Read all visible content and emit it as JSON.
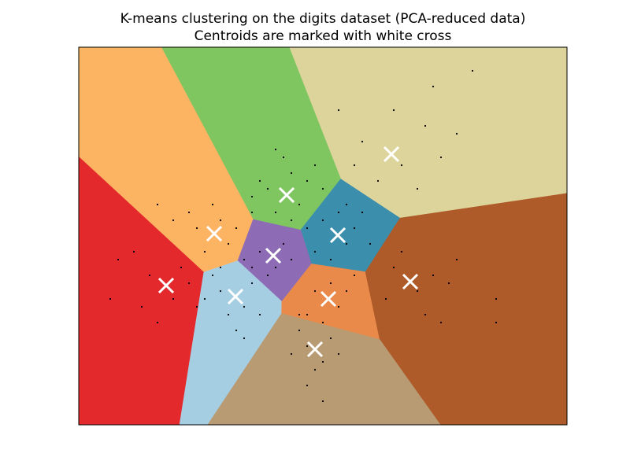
{
  "chart_data": {
    "type": "scatter",
    "title": "K-means clustering on the digits dataset (PCA-reduced data)",
    "subtitle": "Centroids are marked with white cross",
    "xlim": [
      0,
      62
    ],
    "ylim": [
      0,
      48
    ],
    "point_color": "#000000",
    "centroid_color": "#ffffff",
    "centroids": {
      "x": [
        39.7,
        26.4,
        17.2,
        32.9,
        24.7,
        11.1,
        19.9,
        31.7,
        42.1,
        30.0
      ],
      "y": [
        34.4,
        29.2,
        24.3,
        24.1,
        21.5,
        17.7,
        16.3,
        16.0,
        18.2,
        9.6
      ],
      "colors": [
        "#ddd49b",
        "#7fc661",
        "#fdb462",
        "#3b8eac",
        "#8e6bb5",
        "#e4292c",
        "#a6cee3",
        "#ea8a4a",
        "#ae5a29",
        "#b89b73"
      ]
    },
    "points": {
      "x": [
        36,
        41,
        44,
        38,
        45,
        40,
        35,
        43,
        48,
        50,
        33,
        46,
        24,
        27,
        28,
        25,
        29,
        22,
        26,
        30,
        23,
        27,
        31,
        25,
        15,
        18,
        16,
        19,
        14,
        20,
        17,
        21,
        12,
        18,
        22,
        10,
        31,
        34,
        33,
        35,
        30,
        36,
        32,
        29,
        37,
        34,
        23,
        25,
        26,
        24,
        22,
        27,
        9,
        12,
        14,
        8,
        5,
        13,
        10,
        4,
        15,
        7,
        18,
        21,
        19,
        22,
        17,
        20,
        23,
        16,
        21,
        30,
        33,
        32,
        29,
        34,
        31,
        35,
        40,
        43,
        45,
        39,
        44,
        47,
        41,
        48,
        46,
        53,
        53,
        29,
        31,
        28,
        32,
        30,
        27,
        33,
        29,
        31,
        28
      ],
      "y": [
        36,
        33,
        38,
        31,
        43,
        40,
        33,
        30,
        37,
        45,
        40,
        34,
        30,
        32,
        28,
        27,
        31,
        29,
        34,
        33,
        31,
        26,
        30,
        35,
        25,
        26,
        22,
        23,
        27,
        25,
        28,
        21,
        26,
        20,
        27,
        28,
        26,
        23,
        27,
        25,
        22,
        27,
        21,
        25,
        23,
        28,
        22,
        20,
        23,
        19,
        20,
        21,
        19,
        16,
        18,
        15,
        21,
        20,
        13,
        16,
        15,
        22,
        17,
        15,
        14,
        18,
        19,
        12,
        14,
        16,
        11,
        17,
        15,
        18,
        14,
        17,
        13,
        19,
        20,
        17,
        19,
        16,
        14,
        18,
        22,
        21,
        13,
        16,
        13,
        10,
        8,
        12,
        11,
        7,
        9,
        9,
        5,
        3,
        14
      ]
    }
  }
}
